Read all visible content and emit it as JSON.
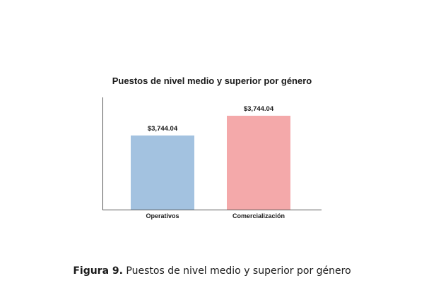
{
  "chart_data": {
    "type": "bar",
    "title": "Puestos de nivel medio y superior por género",
    "xlabel": "",
    "ylabel": "",
    "categories": [
      "Operativos",
      "Comercialización"
    ],
    "values": [
      3744.04,
      3744.04
    ],
    "data_labels": [
      "$3,744.04",
      "$3,744.04"
    ],
    "colors": [
      "#a3c2e0",
      "#f4a9aa"
    ],
    "grid": false
  },
  "caption": {
    "label": "Figura 9.",
    "text": " Puestos de nivel medio y superior por género"
  }
}
